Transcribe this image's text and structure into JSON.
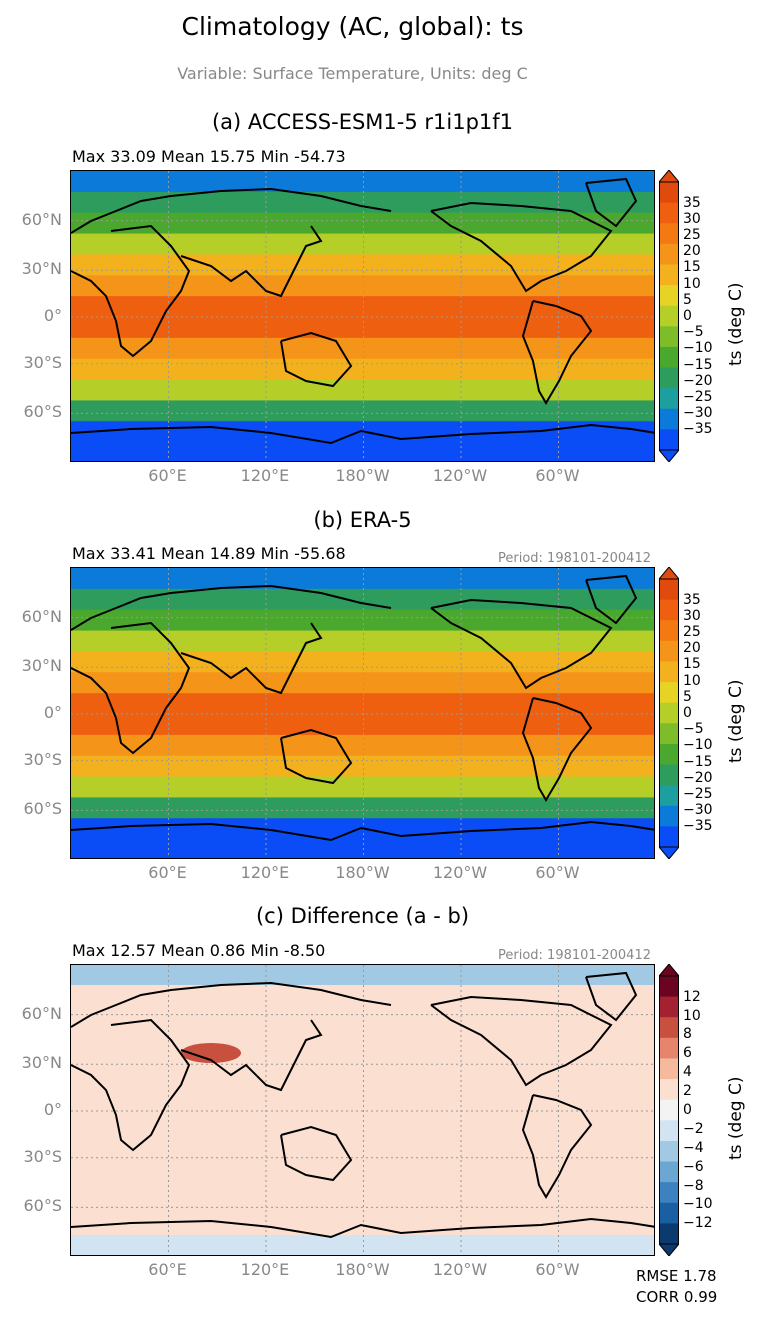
{
  "title": "Climatology (AC, global): ts",
  "subtitle": "Variable: Surface Temperature, Units: deg C",
  "lat_labels": [
    "60°N",
    "30°N",
    "0°",
    "30°S",
    "60°S"
  ],
  "lon_labels": [
    "60°E",
    "120°E",
    "180°W",
    "120°W",
    "60°W"
  ],
  "colorbar_label": "ts (deg C)",
  "panels": [
    {
      "title": "(a) ACCESS-ESM1-5 r1i1p1f1",
      "stats": "Max 33.09 Mean 15.75 Min -54.73",
      "period": "",
      "colorbar_ticks": [
        "35",
        "30",
        "25",
        "20",
        "15",
        "10",
        "5",
        "0",
        "−5",
        "−10",
        "−15",
        "−20",
        "−25",
        "−30",
        "−35"
      ],
      "colors": [
        "#0a4df7",
        "#0b7ad9",
        "#1d9f9f",
        "#2d9c5c",
        "#4aa82e",
        "#7dbd2a",
        "#b5cf28",
        "#e6d324",
        "#f3b21d",
        "#f49418",
        "#f37a12",
        "#ee6010",
        "#e04a0c"
      ]
    },
    {
      "title": "(b) ERA-5",
      "stats": "Max 33.41 Mean 14.89 Min -55.68",
      "period": "Period: 198101-200412",
      "colorbar_ticks": [
        "35",
        "30",
        "25",
        "20",
        "15",
        "10",
        "5",
        "0",
        "−5",
        "−10",
        "−15",
        "−20",
        "−25",
        "−30",
        "−35"
      ],
      "colors": [
        "#0a4df7",
        "#0b7ad9",
        "#1d9f9f",
        "#2d9c5c",
        "#4aa82e",
        "#7dbd2a",
        "#b5cf28",
        "#e6d324",
        "#f3b21d",
        "#f49418",
        "#f37a12",
        "#ee6010",
        "#e04a0c"
      ]
    },
    {
      "title": "(c) Difference (a - b)",
      "stats": "Max 12.57 Mean 0.86 Min -8.50",
      "period": "Period: 198101-200412",
      "colorbar_ticks": [
        "12",
        "10",
        "8",
        "6",
        "4",
        "2",
        "0",
        "−2",
        "−4",
        "−6",
        "−8",
        "−10",
        "−12"
      ],
      "colors": [
        "#0b3a6e",
        "#1b5fa3",
        "#3b82bf",
        "#6ba7d2",
        "#a1c9e3",
        "#d2e4f1",
        "#f3f3f3",
        "#fbe0d2",
        "#f5b99e",
        "#e5856b",
        "#c8503f",
        "#a32232",
        "#6b0421"
      ]
    }
  ],
  "metrics": {
    "rmse": "RMSE 1.78",
    "corr": "CORR 0.99"
  }
}
